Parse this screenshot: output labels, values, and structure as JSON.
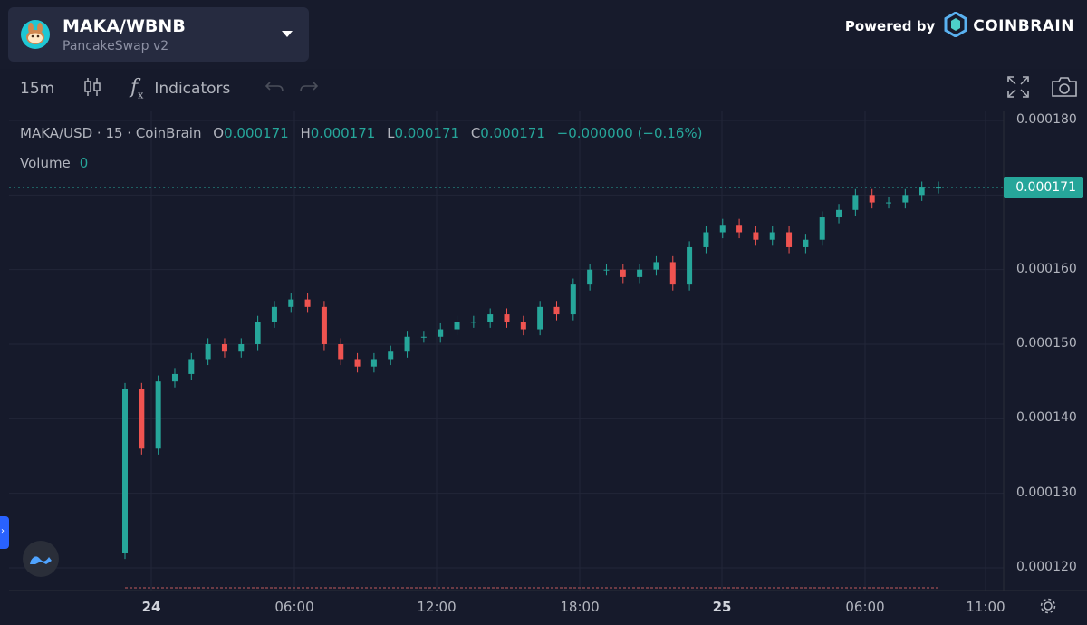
{
  "header": {
    "pair": "MAKA/WBNB",
    "dex": "PancakeSwap v2",
    "powered_by": "Powered by",
    "brand": "COINBRAIN"
  },
  "toolbar": {
    "interval": "15m",
    "indicators": "Indicators"
  },
  "legend": {
    "symbol": "MAKA/USD · 15 · CoinBrain",
    "o_label": "O",
    "o": "0.000171",
    "h_label": "H",
    "h": "0.000171",
    "l_label": "L",
    "l": "0.000171",
    "c_label": "C",
    "c": "0.000171",
    "change": "−0.000000 (−0.16%)",
    "volume_label": "Volume",
    "volume": "0"
  },
  "last_price": "0.000171",
  "colors": {
    "up": "#26a69a",
    "down": "#ef5350",
    "bg": "#161a2b",
    "grid": "#2a2e39"
  },
  "chart_data": {
    "type": "candlestick",
    "y_ticks": [
      "0.000180",
      "0.000170",
      "0.000160",
      "0.000150",
      "0.000140",
      "0.000130",
      "0.000120"
    ],
    "y_values": [
      0.00018,
      0.00017,
      0.00016,
      0.00015,
      0.00014,
      0.00013,
      0.00012
    ],
    "x_ticks": [
      "24",
      "06:00",
      "12:00",
      "18:00",
      "25",
      "06:00",
      "11:00"
    ],
    "x_bold": [
      true,
      false,
      false,
      false,
      true,
      false,
      false
    ],
    "series_close": [
      0.000144,
      0.000136,
      0.000145,
      0.000146,
      0.000148,
      0.00015,
      0.000149,
      0.00015,
      0.000153,
      0.000155,
      0.000156,
      0.000155,
      0.00015,
      0.000148,
      0.000147,
      0.000148,
      0.000149,
      0.000151,
      0.000151,
      0.000152,
      0.000153,
      0.000153,
      0.000154,
      0.000153,
      0.000152,
      0.000155,
      0.000154,
      0.000158,
      0.00016,
      0.00016,
      0.000159,
      0.00016,
      0.000161,
      0.000158,
      0.000163,
      0.000165,
      0.000166,
      0.000165,
      0.000164,
      0.000165,
      0.000163,
      0.000164,
      0.000167,
      0.000168,
      0.00017,
      0.000169,
      0.000169,
      0.00017,
      0.000171,
      0.000171
    ]
  }
}
